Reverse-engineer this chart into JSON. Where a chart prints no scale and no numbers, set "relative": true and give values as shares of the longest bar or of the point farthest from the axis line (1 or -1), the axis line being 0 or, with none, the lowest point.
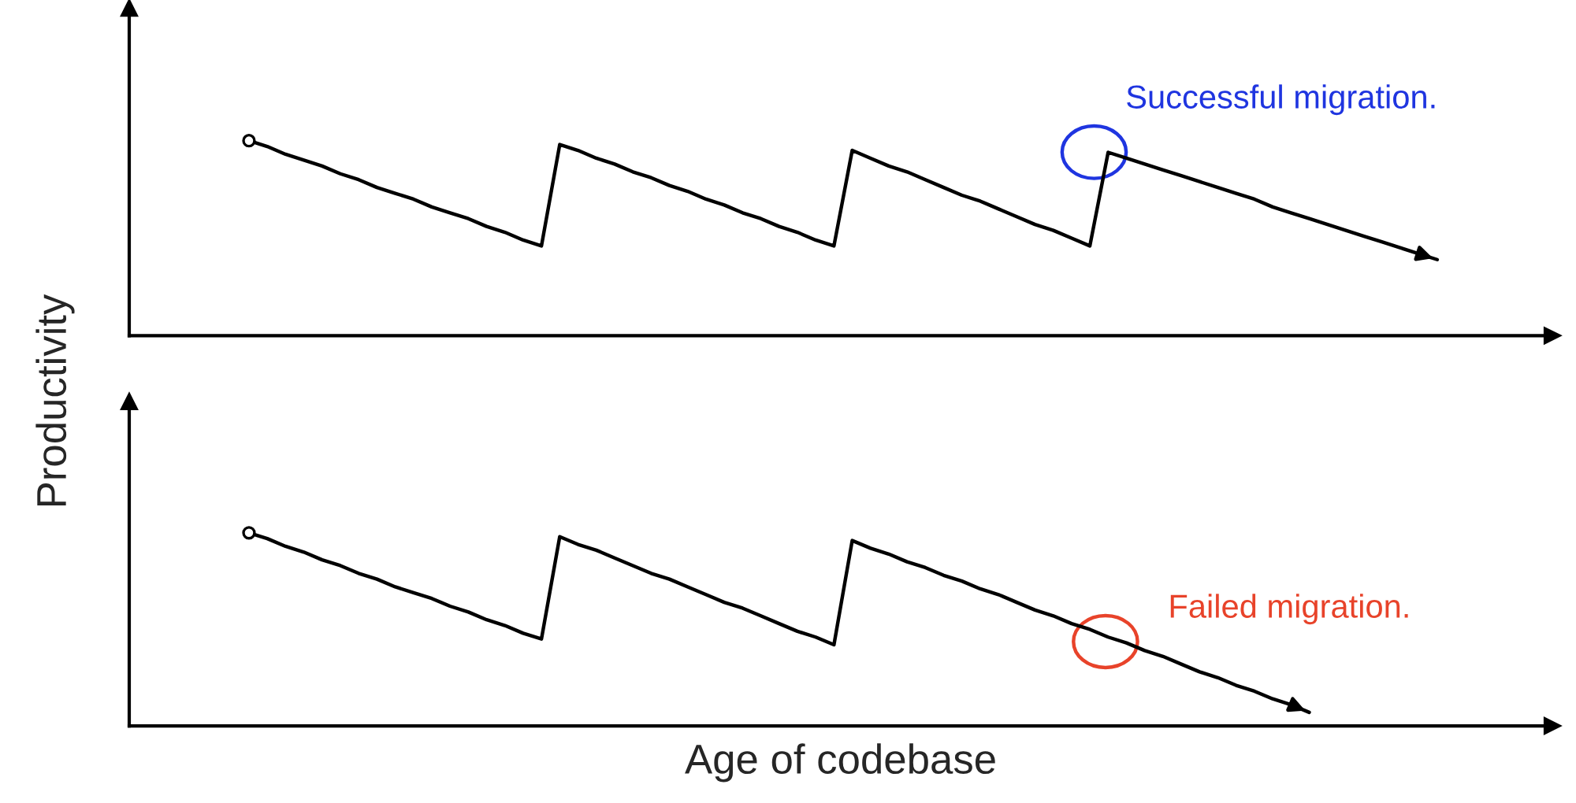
{
  "chart_data": [
    {
      "type": "line",
      "relative": true,
      "ylabel": "Productivity",
      "categories": [
        null,
        null,
        null,
        null,
        null,
        null,
        null,
        null,
        null,
        null,
        null,
        null,
        null,
        null,
        null,
        null,
        null,
        null,
        null,
        null,
        null,
        null,
        null,
        null,
        null,
        null,
        null,
        null,
        null,
        null,
        null,
        null,
        null,
        null,
        null,
        null,
        null,
        null,
        null,
        null,
        null,
        null,
        null,
        null,
        null,
        null,
        null,
        null,
        null,
        null,
        null,
        null,
        null,
        null,
        null,
        null,
        null,
        null,
        null,
        null,
        null,
        null,
        null,
        null,
        null,
        null
      ],
      "series": [
        {
          "color": "#000000",
          "values": [
            1,
            0.97,
            0.93,
            0.9,
            0.87,
            0.83,
            0.8,
            0.76,
            0.73,
            0.7,
            0.66,
            0.63,
            0.6,
            0.56,
            0.53,
            0.49,
            0.46,
            0.98,
            0.95,
            0.91,
            0.88,
            0.84,
            0.81,
            0.77,
            0.74,
            0.7,
            0.67,
            0.63,
            0.6,
            0.56,
            0.53,
            0.49,
            0.46,
            0.95,
            0.91,
            0.87,
            0.84,
            0.8,
            0.76,
            0.72,
            0.69,
            0.65,
            0.61,
            0.57,
            0.54,
            0.5,
            0.46,
            0.94,
            0.91,
            0.88,
            0.85,
            0.82,
            0.79,
            0.76,
            0.73,
            0.7,
            0.66,
            0.63,
            0.6,
            0.57,
            0.54,
            0.51,
            0.48,
            0.45,
            0.42,
            0.39
          ]
        }
      ],
      "annotations": [
        "Successful migration."
      ]
    },
    {
      "type": "line",
      "relative": true,
      "xlabel": "Age of codebase",
      "categories": [
        null,
        null,
        null,
        null,
        null,
        null,
        null,
        null,
        null,
        null,
        null,
        null,
        null,
        null,
        null,
        null,
        null,
        null,
        null,
        null,
        null,
        null,
        null,
        null,
        null,
        null,
        null,
        null,
        null,
        null,
        null,
        null,
        null,
        null,
        null,
        null,
        null,
        null,
        null,
        null,
        null,
        null,
        null,
        null,
        null,
        null,
        null,
        null,
        null,
        null,
        null,
        null,
        null,
        null,
        null,
        null,
        null,
        null,
        null,
        null,
        null,
        null,
        null,
        null,
        null,
        null
      ],
      "series": [
        {
          "color": "#000000",
          "values": [
            1,
            0.97,
            0.93,
            0.9,
            0.86,
            0.83,
            0.79,
            0.76,
            0.72,
            0.69,
            0.66,
            0.62,
            0.59,
            0.55,
            0.52,
            0.48,
            0.45,
            0.98,
            0.94,
            0.91,
            0.87,
            0.83,
            0.79,
            0.76,
            0.72,
            0.68,
            0.64,
            0.61,
            0.57,
            0.53,
            0.49,
            0.46,
            0.42,
            0.96,
            0.92,
            0.89,
            0.85,
            0.82,
            0.78,
            0.75,
            0.71,
            0.68,
            0.64,
            0.6,
            0.57,
            0.53,
            0.5,
            0.46,
            0.43,
            0.39,
            0.36,
            0.32,
            0.28,
            0.25,
            0.21,
            0.18,
            0.14,
            0.11,
            0.07,
            null,
            null,
            null,
            null,
            null,
            null,
            null
          ]
        }
      ],
      "annotations": [
        "Failed migration."
      ]
    }
  ]
}
